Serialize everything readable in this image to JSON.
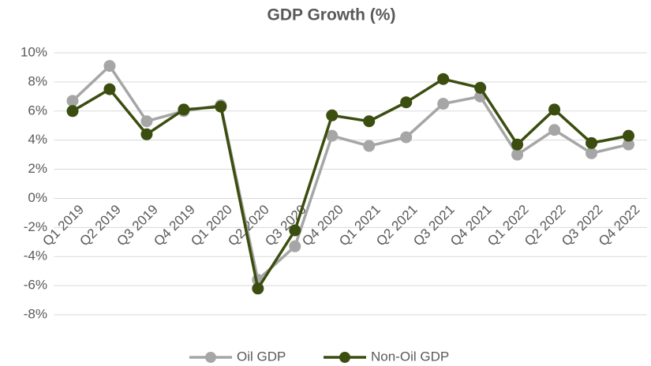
{
  "chart_data": {
    "type": "line",
    "title": "GDP Growth (%)",
    "categories": [
      "Q1 2019",
      "Q2 2019",
      "Q3 2019",
      "Q4 2019",
      "Q1 2020",
      "Q2 2020",
      "Q3 2020",
      "Q4 2020",
      "Q1 2021",
      "Q2 2021",
      "Q3 2021",
      "Q4 2021",
      "Q1 2022",
      "Q2 2022",
      "Q3 2022",
      "Q4 2022"
    ],
    "series": [
      {
        "name": "Oil GDP",
        "color": "#a6a6a6",
        "values": [
          6.7,
          9.1,
          5.3,
          6.0,
          6.4,
          -5.6,
          -3.3,
          4.3,
          3.6,
          4.2,
          6.5,
          7.0,
          3.0,
          4.7,
          3.1,
          3.7
        ]
      },
      {
        "name": "Non-Oil GDP",
        "color": "#3b4d0f",
        "values": [
          6.0,
          7.5,
          4.4,
          6.1,
          6.3,
          -6.2,
          -2.2,
          5.7,
          5.3,
          6.6,
          8.2,
          7.6,
          3.7,
          6.1,
          3.8,
          4.3
        ]
      }
    ],
    "ylim": [
      -8,
      10
    ],
    "yticks": [
      {
        "value": -8,
        "label": "-8%"
      },
      {
        "value": -6,
        "label": "-6%"
      },
      {
        "value": -4,
        "label": "-4%"
      },
      {
        "value": -2,
        "label": "-2%"
      },
      {
        "value": 0,
        "label": "0%"
      },
      {
        "value": 2,
        "label": "2%"
      },
      {
        "value": 4,
        "label": "4%"
      },
      {
        "value": 6,
        "label": "6%"
      },
      {
        "value": 8,
        "label": "8%"
      },
      {
        "value": 10,
        "label": "10%"
      }
    ],
    "grid": true,
    "legend": "bottom"
  }
}
